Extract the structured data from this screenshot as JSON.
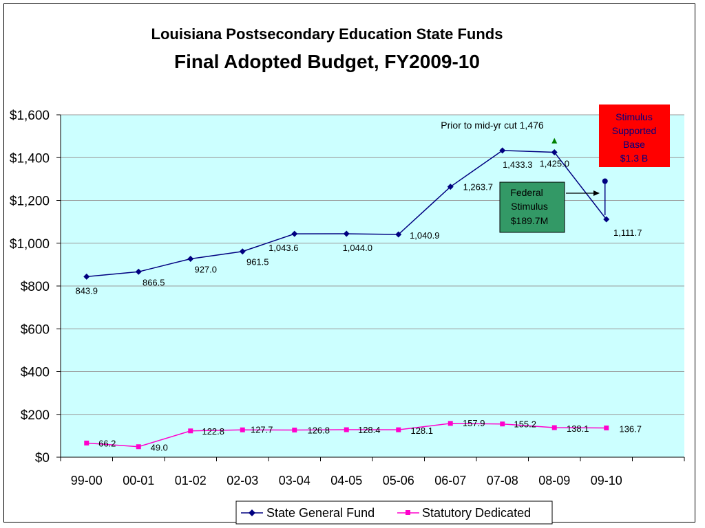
{
  "chart_data": {
    "type": "line",
    "title": "Louisiana Postsecondary Education State Funds",
    "subtitle": "Final Adopted Budget, FY2009-10",
    "categories": [
      "99-00",
      "00-01",
      "01-02",
      "02-03",
      "03-04",
      "04-05",
      "05-06",
      "06-07",
      "07-08",
      "08-09",
      "09-10"
    ],
    "y_tick_labels": [
      "$0",
      "$200",
      "$400",
      "$600",
      "$800",
      "$1,000",
      "$1,200",
      "$1,400",
      "$1,600"
    ],
    "ylim": [
      0,
      1600
    ],
    "grid": true,
    "legend_position": "bottom",
    "series": [
      {
        "name": "State General Fund",
        "color": "#000080",
        "marker": "diamond",
        "values": [
          843.9,
          866.5,
          927.0,
          961.5,
          1043.6,
          1044.0,
          1040.9,
          1263.7,
          1433.3,
          1425.0,
          1111.7
        ],
        "labels": [
          "843.9",
          "866.5",
          "927.0",
          "961.5",
          "1,043.6",
          "1,044.0",
          "1,040.9",
          "1,263.7",
          "1,433.3",
          "1,425.0",
          "1,111.7"
        ]
      },
      {
        "name": "Statutory Dedicated",
        "color": "#FF00CC",
        "marker": "square",
        "values": [
          66.2,
          49.0,
          122.8,
          127.7,
          126.8,
          128.4,
          128.1,
          157.9,
          155.2,
          138.1,
          136.7
        ],
        "labels": [
          "66.2",
          "49.0",
          "122.8",
          "127.7",
          "126.8",
          "128.4",
          "128.1",
          "157.9",
          "155.2",
          "138.1",
          "136.7"
        ]
      }
    ],
    "annotations": {
      "prior_cut": {
        "text": "Prior to mid-yr cut 1,476",
        "category": "08-09",
        "value": 1476,
        "color": "#008000"
      },
      "stimulus_base": {
        "lines": [
          "Stimulus",
          "Supported",
          "Base",
          "$1.3 B"
        ],
        "category": "09-10",
        "value": 1290,
        "box_color": "#FF0000",
        "text_color": "#000080"
      },
      "federal_stimulus": {
        "lines": [
          "Federal",
          "Stimulus",
          "$189.7M"
        ],
        "box_color": "#339966"
      }
    },
    "colors": {
      "plot_background": "#CCFFFF",
      "gridline": "#999999"
    }
  }
}
